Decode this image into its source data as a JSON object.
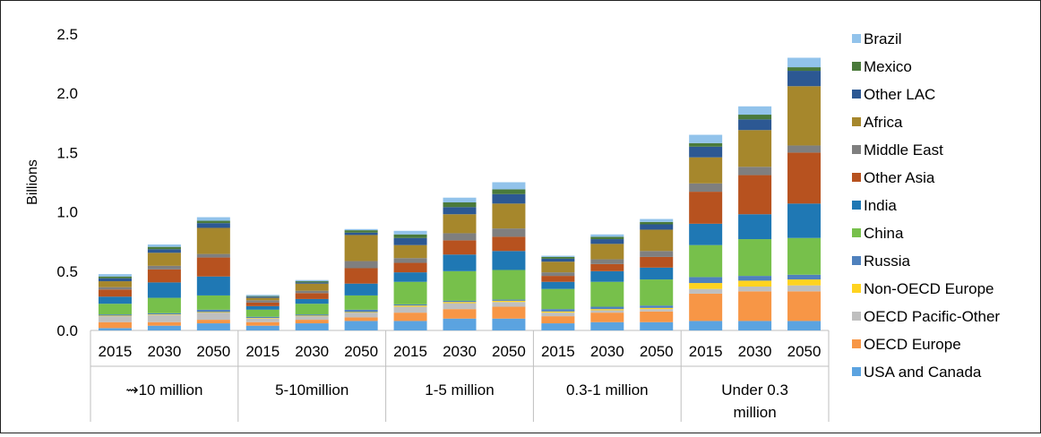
{
  "chart_data": {
    "type": "bar",
    "stacked": true,
    "ylabel": "Billions",
    "ylim": [
      0,
      2.5
    ],
    "yticks": [
      "0.0",
      "0.5",
      "1.0",
      "1.5",
      "2.0",
      "2.5"
    ],
    "ytick_values": [
      0,
      0.5,
      1.0,
      1.5,
      2.0,
      2.5
    ],
    "grid": false,
    "legend_position": "right",
    "categories": [
      "2015",
      "2030",
      "2050",
      "2015",
      "2030",
      "2050",
      "2015",
      "2030",
      "2050",
      "2015",
      "2030",
      "2050",
      "2015",
      "2030",
      "2050"
    ],
    "groups": [
      {
        "label": "⇝10 million",
        "size": 3
      },
      {
        "label": "5-10million",
        "size": 3
      },
      {
        "label": "1-5 million",
        "size": 3
      },
      {
        "label": "0.3-1 million",
        "size": 3
      },
      {
        "label": "Under 0.3 million",
        "size": 3
      }
    ],
    "series": [
      {
        "name": "USA and Canada",
        "color": "#5ba3e0",
        "values": [
          0.02,
          0.04,
          0.06,
          0.04,
          0.06,
          0.08,
          0.08,
          0.1,
          0.1,
          0.06,
          0.07,
          0.07,
          0.08,
          0.08,
          0.08
        ]
      },
      {
        "name": "OECD Europe",
        "color": "#f79646",
        "values": [
          0.05,
          0.03,
          0.03,
          0.03,
          0.03,
          0.03,
          0.07,
          0.08,
          0.1,
          0.06,
          0.08,
          0.09,
          0.23,
          0.25,
          0.25
        ]
      },
      {
        "name": "OECD Pacific-Other",
        "color": "#bfbfbf",
        "values": [
          0.05,
          0.06,
          0.06,
          0.03,
          0.03,
          0.04,
          0.05,
          0.05,
          0.04,
          0.03,
          0.02,
          0.02,
          0.04,
          0.04,
          0.05
        ]
      },
      {
        "name": "Non-OECD Europe",
        "color": "#ffd320",
        "values": [
          0.005,
          0.005,
          0.005,
          0.005,
          0.005,
          0.005,
          0.01,
          0.01,
          0.01,
          0.01,
          0.01,
          0.01,
          0.05,
          0.05,
          0.05
        ]
      },
      {
        "name": "Russia",
        "color": "#4f81bd",
        "values": [
          0.01,
          0.01,
          0.02,
          0.01,
          0.01,
          0.02,
          0.01,
          0.01,
          0.01,
          0.02,
          0.02,
          0.02,
          0.05,
          0.04,
          0.04
        ]
      },
      {
        "name": "China",
        "color": "#77c04b",
        "values": [
          0.09,
          0.13,
          0.12,
          0.06,
          0.09,
          0.12,
          0.19,
          0.25,
          0.25,
          0.17,
          0.21,
          0.22,
          0.27,
          0.31,
          0.31
        ]
      },
      {
        "name": "India",
        "color": "#1f78b4",
        "values": [
          0.06,
          0.13,
          0.16,
          0.03,
          0.04,
          0.1,
          0.08,
          0.14,
          0.16,
          0.06,
          0.09,
          0.1,
          0.18,
          0.21,
          0.29
        ]
      },
      {
        "name": "Other Asia",
        "color": "#b7521f",
        "values": [
          0.06,
          0.11,
          0.16,
          0.03,
          0.05,
          0.13,
          0.08,
          0.12,
          0.12,
          0.05,
          0.06,
          0.09,
          0.27,
          0.33,
          0.43
        ]
      },
      {
        "name": "Middle East",
        "color": "#7f7f7f",
        "values": [
          0.02,
          0.03,
          0.03,
          0.02,
          0.02,
          0.06,
          0.04,
          0.06,
          0.07,
          0.03,
          0.04,
          0.05,
          0.07,
          0.07,
          0.06
        ]
      },
      {
        "name": "Africa",
        "color": "#a6872c",
        "values": [
          0.05,
          0.11,
          0.22,
          0.02,
          0.06,
          0.22,
          0.11,
          0.16,
          0.21,
          0.09,
          0.13,
          0.18,
          0.22,
          0.31,
          0.5
        ]
      },
      {
        "name": "Other LAC",
        "color": "#2c5893",
        "values": [
          0.025,
          0.03,
          0.04,
          0.01,
          0.01,
          0.02,
          0.06,
          0.06,
          0.08,
          0.025,
          0.04,
          0.045,
          0.09,
          0.09,
          0.13
        ]
      },
      {
        "name": "Mexico",
        "color": "#4a7a3b",
        "values": [
          0.015,
          0.02,
          0.02,
          0.005,
          0.01,
          0.02,
          0.03,
          0.04,
          0.04,
          0.015,
          0.02,
          0.02,
          0.03,
          0.04,
          0.03
        ]
      },
      {
        "name": "Brazil",
        "color": "#92c3eb",
        "values": [
          0.02,
          0.02,
          0.03,
          0.01,
          0.01,
          0.01,
          0.03,
          0.04,
          0.06,
          0.01,
          0.02,
          0.025,
          0.07,
          0.07,
          0.08
        ]
      }
    ]
  }
}
